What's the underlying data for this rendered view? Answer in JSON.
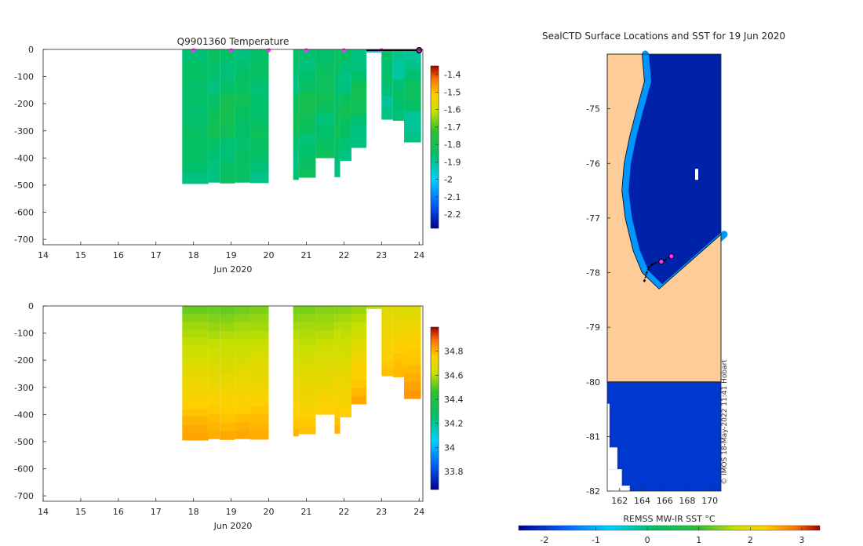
{
  "chart_data": [
    {
      "type": "heatmap",
      "title": "Q9901360  Temperature",
      "xlabel": "Jun 2020",
      "ylabel": "",
      "xlim": [
        14,
        24.1
      ],
      "ylim": [
        -720,
        0
      ],
      "x_ticks": [
        "14",
        "15",
        "16",
        "17",
        "18",
        "19",
        "20",
        "21",
        "22",
        "23",
        "24"
      ],
      "y_ticks": [
        "0",
        "-100",
        "-200",
        "-300",
        "-400",
        "-500",
        "-600",
        "-700"
      ],
      "colorbar": {
        "min": -2.28,
        "max": -1.35,
        "ticks": [
          "-1.4",
          "-1.5",
          "-1.6",
          "-1.7",
          "-1.8",
          "-1.9",
          "-2",
          "-2.1",
          "-2.2"
        ]
      },
      "profile_markers": [
        18,
        19,
        20,
        21,
        22,
        23
      ],
      "current_position_marker": 24.0,
      "profiles": [
        {
          "t0": 17.7,
          "t1": 18.4,
          "depth": 495,
          "value": -1.87
        },
        {
          "t0": 18.4,
          "t1": 18.7,
          "depth": 490,
          "value": -1.86
        },
        {
          "t0": 18.7,
          "t1": 19.1,
          "depth": 493,
          "value": -1.85
        },
        {
          "t0": 19.1,
          "t1": 19.5,
          "depth": 490,
          "value": -1.86
        },
        {
          "t0": 19.5,
          "t1": 20.0,
          "depth": 492,
          "value": -1.87
        },
        {
          "t0": 20.65,
          "t1": 20.8,
          "depth": 480,
          "value": -1.86
        },
        {
          "t0": 20.8,
          "t1": 21.25,
          "depth": 472,
          "value": -1.85
        },
        {
          "t0": 21.25,
          "t1": 21.75,
          "depth": 400,
          "value": -1.85
        },
        {
          "t0": 21.75,
          "t1": 21.9,
          "depth": 470,
          "value": -1.86
        },
        {
          "t0": 21.9,
          "t1": 22.2,
          "depth": 410,
          "value": -1.86
        },
        {
          "t0": 22.2,
          "t1": 22.6,
          "depth": 362,
          "value": -1.86
        },
        {
          "t0": 22.6,
          "t1": 23.0,
          "depth": 10,
          "value": -2.05
        },
        {
          "t0": 23.0,
          "t1": 23.3,
          "depth": 258,
          "value": -1.88
        },
        {
          "t0": 23.3,
          "t1": 23.6,
          "depth": 262,
          "value": -1.89
        },
        {
          "t0": 23.6,
          "t1": 24.05,
          "depth": 342,
          "value": -1.88
        }
      ]
    },
    {
      "type": "heatmap",
      "title": "",
      "xlabel": "Jun 2020",
      "ylabel": "",
      "xlim": [
        14,
        24.1
      ],
      "ylim": [
        -720,
        0
      ],
      "x_ticks": [
        "14",
        "15",
        "16",
        "17",
        "18",
        "19",
        "20",
        "21",
        "22",
        "23",
        "24"
      ],
      "y_ticks": [
        "0",
        "-100",
        "-200",
        "-300",
        "-400",
        "-500",
        "-600",
        "-700"
      ],
      "colorbar": {
        "min": 33.65,
        "max": 35.0,
        "ticks": [
          "34.8",
          "34.6",
          "34.4",
          "34.2",
          "34",
          "33.8"
        ]
      },
      "profiles": [
        {
          "t0": 17.7,
          "t1": 18.4,
          "depth": 495,
          "surface": 34.5,
          "bottom": 34.83
        },
        {
          "t0": 18.4,
          "t1": 18.7,
          "depth": 490,
          "surface": 34.5,
          "bottom": 34.82
        },
        {
          "t0": 18.7,
          "t1": 19.1,
          "depth": 493,
          "surface": 34.5,
          "bottom": 34.82
        },
        {
          "t0": 19.1,
          "t1": 19.5,
          "depth": 490,
          "surface": 34.51,
          "bottom": 34.82
        },
        {
          "t0": 19.5,
          "t1": 20.0,
          "depth": 492,
          "surface": 34.52,
          "bottom": 34.82
        },
        {
          "t0": 20.65,
          "t1": 20.8,
          "depth": 480,
          "surface": 34.52,
          "bottom": 34.8
        },
        {
          "t0": 20.8,
          "t1": 21.25,
          "depth": 472,
          "surface": 34.52,
          "bottom": 34.78
        },
        {
          "t0": 21.25,
          "t1": 21.75,
          "depth": 400,
          "surface": 34.53,
          "bottom": 34.76
        },
        {
          "t0": 21.75,
          "t1": 21.9,
          "depth": 470,
          "surface": 34.54,
          "bottom": 34.8
        },
        {
          "t0": 21.9,
          "t1": 22.2,
          "depth": 410,
          "surface": 34.54,
          "bottom": 34.76
        },
        {
          "t0": 22.2,
          "t1": 22.6,
          "depth": 362,
          "surface": 34.55,
          "bottom": 34.82
        },
        {
          "t0": 22.6,
          "t1": 23.0,
          "depth": 10,
          "surface": 34.62,
          "bottom": 34.62
        },
        {
          "t0": 23.0,
          "t1": 23.3,
          "depth": 258,
          "surface": 34.66,
          "bottom": 34.78
        },
        {
          "t0": 23.3,
          "t1": 23.6,
          "depth": 262,
          "surface": 34.66,
          "bottom": 34.8
        },
        {
          "t0": 23.6,
          "t1": 24.05,
          "depth": 342,
          "surface": 34.66,
          "bottom": 34.84
        }
      ]
    },
    {
      "type": "heatmap",
      "title": "SealCTD Surface Locations and SST for 19 Jun 2020",
      "xlabel": "",
      "ylabel": "",
      "xlim": [
        160.9,
        171.0
      ],
      "ylim": [
        -82,
        -74
      ],
      "x_ticks": [
        "162",
        "164",
        "166",
        "168",
        "170"
      ],
      "y_ticks": [
        "-75",
        "-76",
        "-77",
        "-78",
        "-79",
        "-80",
        "-81",
        "-82"
      ],
      "land_polygon_lonlat": [
        [
          160.9,
          -74
        ],
        [
          164.0,
          -74
        ],
        [
          164.2,
          -74.5
        ],
        [
          163.4,
          -75.1
        ],
        [
          162.9,
          -75.5
        ],
        [
          162.4,
          -76.0
        ],
        [
          162.2,
          -76.5
        ],
        [
          162.5,
          -77.0
        ],
        [
          163.2,
          -77.6
        ],
        [
          164.0,
          -78.0
        ],
        [
          165.5,
          -78.3
        ],
        [
          171.0,
          -77.3
        ],
        [
          171.0,
          -80.0
        ],
        [
          160.9,
          -80.0
        ]
      ],
      "ice_shelf_region_lonlat": [
        [
          160.9,
          -80.0
        ],
        [
          171.0,
          -80.0
        ],
        [
          171.0,
          -82.0
        ],
        [
          160.9,
          -82.0
        ]
      ],
      "sst_ocean_value": -2.0,
      "sst_coastal_value": -1.2,
      "track_lonlat": [
        [
          164.2,
          -78.15
        ],
        [
          164.4,
          -78.0
        ],
        [
          164.6,
          -77.9
        ],
        [
          164.9,
          -77.85
        ],
        [
          165.2,
          -77.82
        ],
        [
          165.6,
          -77.8
        ],
        [
          166.0,
          -77.78
        ],
        [
          166.5,
          -77.7
        ]
      ],
      "highlight_positions_lonlat": [
        [
          165.7,
          -77.8
        ],
        [
          166.6,
          -77.7
        ]
      ],
      "colorbar": {
        "label": "REMSS MW-IR SST °C",
        "min": -2.5,
        "max": 3.35,
        "ticks": [
          "-2",
          "-1",
          "0",
          "1",
          "2",
          "3"
        ]
      }
    }
  ],
  "stamp": "© IMOS 18-May-2022 11:41 Hobart"
}
